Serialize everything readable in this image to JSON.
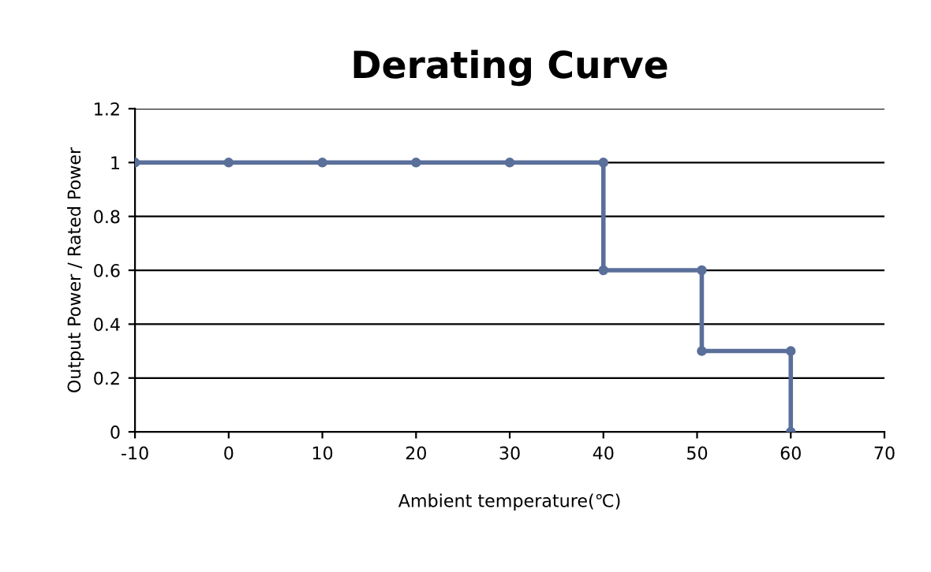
{
  "chart_data": {
    "type": "line",
    "title": "Derating Curve",
    "xlabel": "Ambient temperature(℃)",
    "ylabel": "Output Power / Rated Power",
    "x": [
      -10,
      0,
      10,
      20,
      30,
      40,
      40,
      50.5,
      50.5,
      60,
      60
    ],
    "series": [
      {
        "color": "#5a6f9a",
        "values": [
          1,
          1,
          1,
          1,
          1,
          1,
          0.6,
          0.6,
          0.3,
          0.3,
          0
        ]
      }
    ],
    "xlim": [
      -10,
      70
    ],
    "xticks": [
      -10,
      0,
      10,
      20,
      30,
      40,
      50,
      60,
      70
    ],
    "ylim": [
      0,
      1.2
    ],
    "yticks": [
      0,
      0.2,
      0.4,
      0.6,
      0.8,
      1,
      1.2
    ],
    "grid": "y",
    "marker": "circle",
    "line_style": "solid",
    "legend": false
  }
}
